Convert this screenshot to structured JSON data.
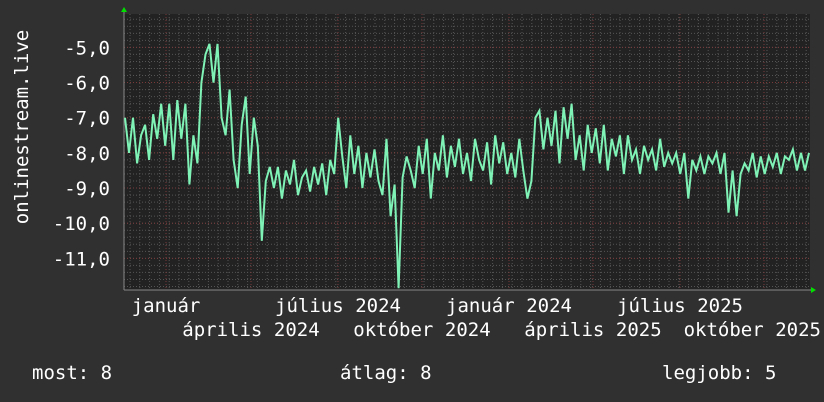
{
  "chart_data": {
    "type": "line",
    "ylabel": "onlinestream.live",
    "ylim": [
      -11.9,
      -4.05
    ],
    "y_ticks": [
      "-5,0",
      "-6,0",
      "-7,0",
      "-8,0",
      "-9,0",
      "-10,0",
      "-11,0"
    ],
    "y_tick_values": [
      -5,
      -6,
      -7,
      -8,
      -9,
      -10,
      -11
    ],
    "x_month_labels": [
      "január",
      "április",
      "július",
      "október",
      "január",
      "április",
      "július",
      "október"
    ],
    "x_year_labels": [
      "2024",
      "2024",
      "2024",
      "2024",
      "2025",
      "2025",
      "2025"
    ],
    "grid": true,
    "series": [
      {
        "color": "#7ff2b6",
        "values": [
          -7.0,
          -8.0,
          -7.0,
          -8.3,
          -7.5,
          -7.2,
          -8.2,
          -6.9,
          -7.6,
          -6.6,
          -7.8,
          -6.6,
          -8.2,
          -6.5,
          -7.6,
          -6.6,
          -8.9,
          -7.5,
          -8.3,
          -6.0,
          -5.2,
          -4.9,
          -6.0,
          -4.9,
          -7.0,
          -7.5,
          -6.2,
          -8.2,
          -9.0,
          -7.2,
          -6.4,
          -8.6,
          -7.0,
          -7.8,
          -10.5,
          -8.8,
          -8.4,
          -9.0,
          -8.4,
          -9.3,
          -8.5,
          -8.9,
          -8.2,
          -9.2,
          -8.7,
          -8.5,
          -9.1,
          -8.4,
          -8.9,
          -8.3,
          -9.2,
          -8.2,
          -8.6,
          -7.0,
          -8.1,
          -9.0,
          -7.5,
          -8.6,
          -7.8,
          -9.0,
          -8.0,
          -8.7,
          -7.9,
          -8.8,
          -9.2,
          -7.6,
          -9.8,
          -8.9,
          -11.85,
          -8.7,
          -8.1,
          -8.5,
          -9.0,
          -7.8,
          -8.6,
          -7.6,
          -9.3,
          -8.0,
          -8.5,
          -7.5,
          -8.7,
          -7.8,
          -8.4,
          -7.6,
          -8.6,
          -8.0,
          -8.8,
          -7.6,
          -8.2,
          -8.5,
          -7.7,
          -8.9,
          -7.5,
          -8.3,
          -7.7,
          -8.6,
          -8.0,
          -8.7,
          -7.6,
          -8.5,
          -9.3,
          -8.8,
          -7.0,
          -6.8,
          -7.9,
          -7.0,
          -7.8,
          -6.8,
          -8.3,
          -6.7,
          -7.6,
          -6.6,
          -8.2,
          -7.5,
          -8.5,
          -7.2,
          -8.0,
          -7.3,
          -8.3,
          -7.2,
          -8.5,
          -7.6,
          -8.1,
          -7.5,
          -8.6,
          -7.5,
          -8.2,
          -7.9,
          -8.6,
          -7.8,
          -8.2,
          -7.9,
          -8.5,
          -7.6,
          -8.4,
          -8.0,
          -8.3,
          -8.0,
          -8.6,
          -8.0,
          -9.3,
          -8.2,
          -8.5,
          -8.1,
          -8.6,
          -8.1,
          -8.3,
          -8.0,
          -8.6,
          -8.0,
          -9.7,
          -8.5,
          -9.8,
          -8.6,
          -8.3,
          -8.5,
          -8.0,
          -8.7,
          -8.1,
          -8.6,
          -8.1,
          -8.4,
          -8.0,
          -8.6,
          -8.1,
          -8.2,
          -7.9,
          -8.5,
          -8.0,
          -8.5,
          -8.0
        ]
      }
    ]
  },
  "legend": {
    "current_label": "most: 8",
    "average_label": "átlag: 8",
    "best_label": "legjobb: 5"
  }
}
